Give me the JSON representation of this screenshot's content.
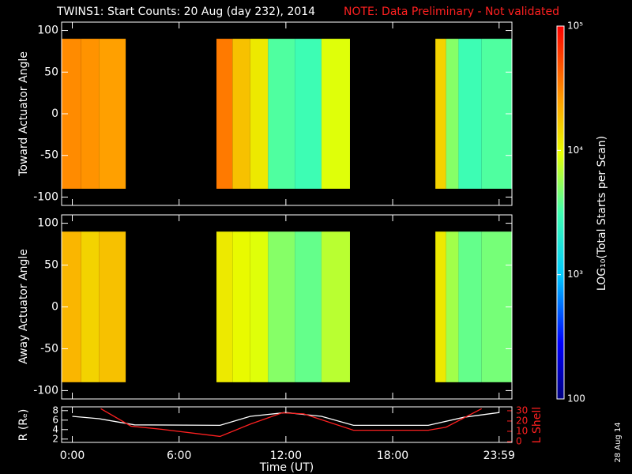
{
  "chart_data": [
    {
      "type": "heatmap",
      "title": "TWINS1: Start Counts: 20 Aug (day 232), 2014",
      "note": "NOTE: Data Preliminary - Not validated",
      "ylabel": "Toward Actuator Angle",
      "xlim": [
        -0.6,
        24.7
      ],
      "ylim": [
        -110,
        110
      ],
      "yticks": [
        -100,
        -50,
        0,
        50,
        100
      ],
      "y_bins": [
        -90,
        90
      ],
      "x_bins": [
        -0.6,
        0.5,
        1.5,
        3.0,
        8.1,
        9.0,
        10.0,
        11.0,
        12.5,
        14.0,
        15.6,
        20.4,
        21.0,
        21.7,
        23.0,
        24.7
      ],
      "values": [
        30000,
        28000,
        25000,
        null,
        35000,
        18000,
        12000,
        3500,
        3000,
        9000,
        null,
        15000,
        5000,
        3000,
        3500
      ],
      "colorbar": {
        "label": "LOG₁₀(Total Starts per Scan)",
        "lim": [
          100,
          100000
        ],
        "log": true,
        "ticks": [
          {
            "value": 100000,
            "label": "10⁵"
          },
          {
            "value": 10000,
            "label": "10⁴"
          },
          {
            "value": 1000,
            "label": "10³"
          },
          100
        ]
      }
    },
    {
      "type": "heatmap",
      "ylabel": "Away Actuator Angle",
      "xlim": [
        -0.6,
        24.7
      ],
      "ylim": [
        -110,
        110
      ],
      "yticks": [
        -100,
        -50,
        0,
        50,
        100
      ],
      "y_bins": [
        -90,
        90
      ],
      "x_bins": [
        -0.6,
        0.5,
        1.5,
        3.0,
        8.1,
        9.0,
        10.0,
        11.0,
        12.5,
        14.0,
        15.6,
        20.4,
        21.0,
        21.7,
        23.0,
        24.7
      ],
      "values": [
        20000,
        15000,
        18000,
        null,
        12000,
        10000,
        9000,
        5000,
        4000,
        7000,
        null,
        12000,
        6000,
        4000,
        4500
      ]
    },
    {
      "type": "line",
      "xlabel": "Time (UT)",
      "ylabel": "R (Rₑ)",
      "y2label": "L Shell",
      "date_stamp": "28 Aug 14",
      "xlim": [
        -0.6,
        24.7
      ],
      "xticks": [
        {
          "value": 0,
          "label": "0:00"
        },
        {
          "value": 6,
          "label": "6:00"
        },
        {
          "value": 12,
          "label": "12:00"
        },
        {
          "value": 18,
          "label": "18:00"
        },
        {
          "value": 23.98,
          "label": "23:59"
        }
      ],
      "ylim": [
        1.3,
        8.8
      ],
      "yticks": [
        2,
        4,
        6,
        8
      ],
      "y2lim": [
        -0.8,
        33.8
      ],
      "y2ticks": [
        0,
        10,
        20,
        30
      ],
      "series": [
        {
          "color": "#ffffff",
          "x": [
            0,
            1.5,
            3.5,
            8.3,
            10,
            12,
            14,
            15.8,
            20,
            22,
            23.98
          ],
          "values": [
            6.8,
            6.3,
            5.0,
            4.9,
            6.8,
            7.6,
            6.8,
            4.9,
            4.9,
            6.6,
            7.6
          ]
        },
        {
          "color": "#ff2020",
          "axis": "y2",
          "x": [
            1.6,
            3.3,
            5,
            8.3,
            10,
            11.8,
            13,
            15.8,
            20,
            21,
            23
          ],
          "values": [
            32,
            15,
            12,
            5,
            17,
            28,
            27,
            11,
            11,
            14,
            32
          ]
        }
      ]
    }
  ]
}
